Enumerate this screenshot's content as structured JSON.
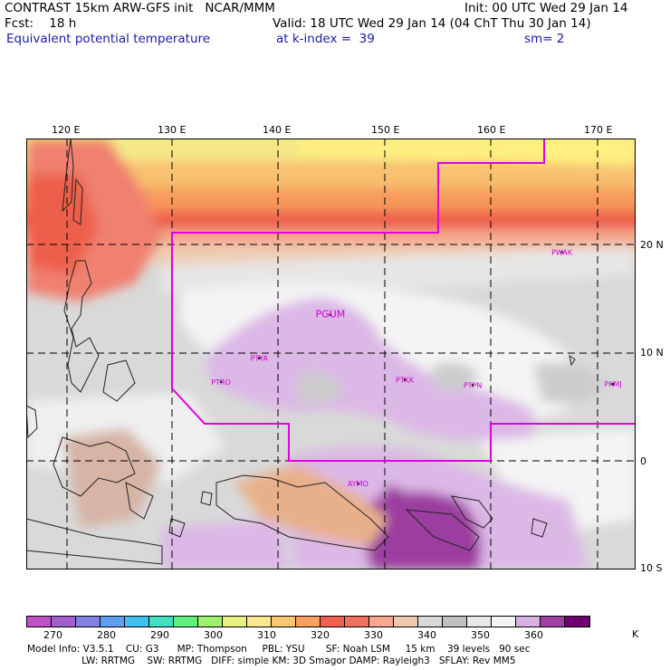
{
  "header": {
    "line1_left": "CONTRAST 15km ARW-GFS init   NCAR/MMM",
    "line1_right": "Init: 00 UTC Wed 29 Jan 14",
    "line2_left": "Fcst:    18 h",
    "line2_right": "Valid: 18 UTC Wed 29 Jan 14 (04 ChT Thu 30 Jan 14)",
    "line3_left": "Equivalent potential temperature",
    "line3_mid": "at k-index =  39",
    "line3_right": "sm= 2"
  },
  "map": {
    "lon_labels": [
      "120 E",
      "130 E",
      "140 E",
      "150 E",
      "160 E",
      "170 E"
    ],
    "lat_labels": [
      "20 N",
      "10 N",
      "0",
      "10 S"
    ],
    "stations": [
      {
        "name": "PGUM",
        "lon": 144.8,
        "lat": 13.5
      },
      {
        "name": "PWAK",
        "lon": 166.6,
        "lat": 19.3
      },
      {
        "name": "PTYA",
        "lon": 138.1,
        "lat": 9.5
      },
      {
        "name": "PTRO",
        "lon": 134.5,
        "lat": 7.3
      },
      {
        "name": "PTKK",
        "lon": 151.8,
        "lat": 7.5
      },
      {
        "name": "PTPN",
        "lon": 158.2,
        "lat": 7.0
      },
      {
        "name": "PKMJ",
        "lon": 171.4,
        "lat": 7.1
      },
      {
        "name": "AYMO",
        "lon": 147.4,
        "lat": -2.1
      }
    ],
    "colors": {
      "boundary": "#e000e0",
      "station": "#d000d0",
      "grid": "#000000"
    }
  },
  "colorbar": {
    "unit": "K",
    "colors": [
      "#c050c8",
      "#a060d0",
      "#8080e0",
      "#5f9ef0",
      "#40c0f0",
      "#40e0c0",
      "#60f080",
      "#a0f070",
      "#e8f080",
      "#f8e890",
      "#f8c870",
      "#f8a060",
      "#f06050",
      "#f07060",
      "#f8a890",
      "#f0c8b0",
      "#d8d8d8",
      "#c0c0c0",
      "#e8e8e8",
      "#f4f4f4",
      "#d8b0e0",
      "#a040a0",
      "#700070"
    ],
    "ticks": [
      "270",
      "280",
      "290",
      "300",
      "310",
      "320",
      "330",
      "340",
      "350",
      "360"
    ]
  },
  "footer": {
    "line1": "Model Info: V3.5.1    CU: G3      MP: Thompson     PBL: YSU       SF: Noah LSM     15 km    39 levels   90 sec",
    "line2": "                  LW: RRTMG    SW: RRTMG   DIFF: simple KM: 3D Smagor DAMP: Rayleigh3   SFLAY: Rev MM5"
  }
}
